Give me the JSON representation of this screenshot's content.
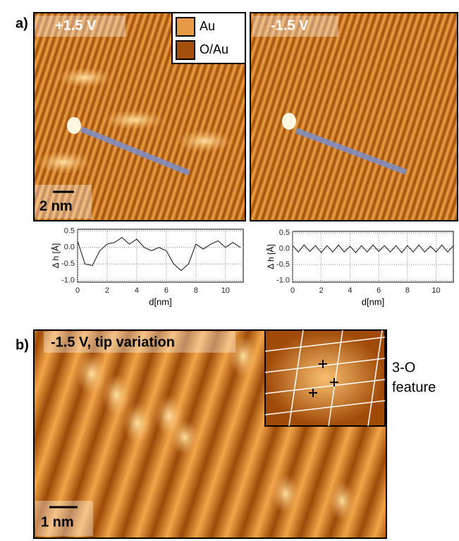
{
  "figure": {
    "panel_a": {
      "label": "a)",
      "left_image": {
        "voltage": "+1.5 V",
        "scale_bar": "2 nm",
        "legend": [
          "Au",
          "O/Au"
        ]
      },
      "right_image": {
        "voltage": "-1.5 V"
      }
    },
    "panel_b": {
      "label": "b)",
      "caption": "-1.5 V, tip variation",
      "scale_bar": "1 nm",
      "inset_label": [
        "3-O",
        "feature"
      ]
    }
  },
  "chart_data": [
    {
      "type": "line",
      "xlabel": "d[nm]",
      "ylabel": "Δ h [Å]",
      "x": [
        0,
        0.5,
        1,
        1.5,
        2,
        2.5,
        3,
        3.5,
        4,
        4.5,
        5,
        5.5,
        6,
        6.5,
        7,
        7.5,
        8,
        8.5,
        9,
        9.5,
        10,
        10.5,
        11
      ],
      "series": [
        {
          "color": "#333333",
          "values": [
            0.2,
            -0.5,
            -0.55,
            -0.1,
            0.1,
            0.15,
            0.3,
            0.1,
            0.25,
            0.0,
            -0.1,
            0.0,
            -0.1,
            -0.5,
            -0.7,
            -0.5,
            0.1,
            -0.05,
            0.1,
            0.2,
            0.0,
            0.15,
            0.0
          ]
        }
      ],
      "xlim": [
        0,
        11.2
      ],
      "ylim": [
        -1.05,
        0.55
      ],
      "xticks": [
        0,
        2,
        4,
        6,
        8,
        10
      ],
      "yticks": [
        0.5,
        {
          "value": 0,
          "label": "0.0"
        },
        -0.5,
        {
          "value": -1,
          "label": "-1.0"
        }
      ],
      "grid": true
    },
    {
      "type": "line",
      "xlabel": "d[nm]",
      "ylabel": "Δ h [Å]",
      "x": [
        0,
        0.4,
        0.8,
        1.2,
        1.6,
        2.0,
        2.4,
        2.8,
        3.2,
        3.6,
        4.0,
        4.4,
        4.8,
        5.2,
        5.6,
        6.0,
        6.4,
        6.8,
        7.2,
        7.6,
        8.0,
        8.4,
        8.8,
        9.2,
        9.6,
        10.0,
        10.4,
        10.8,
        11.2
      ],
      "series": [
        {
          "color": "#333333",
          "values": [
            0.1,
            -0.1,
            0.12,
            -0.08,
            0.1,
            -0.12,
            0.1,
            -0.1,
            0.12,
            -0.1,
            0.08,
            -0.12,
            0.1,
            -0.1,
            0.12,
            -0.08,
            0.1,
            -0.1,
            0.1,
            -0.12,
            0.1,
            -0.1,
            0.12,
            -0.1,
            0.08,
            -0.1,
            0.12,
            -0.1,
            0.1
          ]
        }
      ],
      "xlim": [
        0,
        11.2
      ],
      "ylim": [
        -1.05,
        0.55
      ],
      "xticks": [
        0,
        2,
        4,
        6,
        8,
        10
      ],
      "yticks": [
        0.5,
        {
          "value": 0,
          "label": "0.0"
        },
        -0.5,
        {
          "value": -1,
          "label": "-1.0"
        }
      ],
      "grid": true
    }
  ]
}
